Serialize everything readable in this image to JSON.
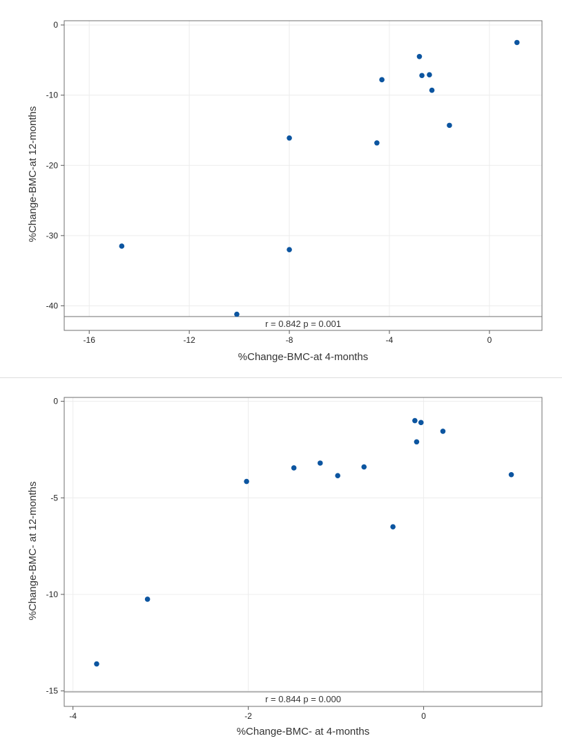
{
  "chart_data": [
    {
      "type": "scatter",
      "xlabel": "%Change-BMC-at 4-months",
      "ylabel": "%Change-BMC-at 12-months",
      "xlim": [
        -17,
        2.1
      ],
      "ylim": [
        -43.5,
        0.6
      ],
      "xticks": [
        -16,
        -12,
        -8,
        -4,
        0
      ],
      "yticks": [
        0,
        -10,
        -20,
        -30,
        -40
      ],
      "grid": true,
      "annotation": "r = 0.842  p = 0.001",
      "marker_color": "#0c55a0",
      "points": [
        {
          "x": 1.1,
          "y": -2.5
        },
        {
          "x": -2.8,
          "y": -4.5
        },
        {
          "x": -2.7,
          "y": -7.2
        },
        {
          "x": -2.4,
          "y": -7.1
        },
        {
          "x": -2.3,
          "y": -9.3
        },
        {
          "x": -4.3,
          "y": -7.8
        },
        {
          "x": -1.6,
          "y": -14.3
        },
        {
          "x": -4.5,
          "y": -16.8
        },
        {
          "x": -8.0,
          "y": -16.1
        },
        {
          "x": -14.7,
          "y": -31.5
        },
        {
          "x": -8.0,
          "y": -32.0
        },
        {
          "x": -10.1,
          "y": -41.2
        }
      ]
    },
    {
      "type": "scatter",
      "xlabel": "%Change-BMC- at 4-months",
      "ylabel": "%Change-BMC- at 12-months",
      "xlim": [
        -4.1,
        1.35
      ],
      "ylim": [
        -15.8,
        0.2
      ],
      "xticks": [
        -4,
        -2,
        0
      ],
      "yticks": [
        0,
        -5,
        -10,
        -15
      ],
      "grid": true,
      "annotation": "r = 0.844  p = 0.000",
      "marker_color": "#0c55a0",
      "points": [
        {
          "x": -0.1,
          "y": -1.0
        },
        {
          "x": -0.03,
          "y": -1.1
        },
        {
          "x": 0.22,
          "y": -1.55
        },
        {
          "x": -0.08,
          "y": -2.1
        },
        {
          "x": -1.18,
          "y": -3.2
        },
        {
          "x": -1.48,
          "y": -3.45
        },
        {
          "x": -0.68,
          "y": -3.4
        },
        {
          "x": -0.98,
          "y": -3.85
        },
        {
          "x": 1.0,
          "y": -3.8
        },
        {
          "x": -2.02,
          "y": -4.15
        },
        {
          "x": -0.35,
          "y": -6.5
        },
        {
          "x": -3.15,
          "y": -10.25
        },
        {
          "x": -3.73,
          "y": -13.6
        }
      ]
    }
  ]
}
